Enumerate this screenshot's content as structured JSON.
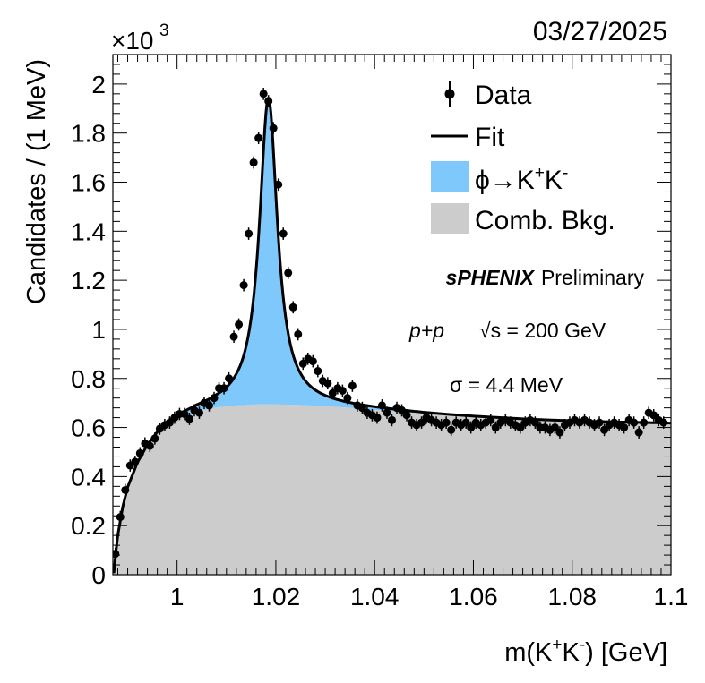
{
  "chart_data": {
    "type": "scatter",
    "date_label": "03/27/2025",
    "multiplier_label": "×10",
    "multiplier_exponent": "3",
    "xlabel_main": "m(K",
    "xlabel_sup1": "+",
    "xlabel_mid": "K",
    "xlabel_sup2": "-",
    "xlabel_end": ") [GeV]",
    "ylabel": "Candidates / (1 MeV)",
    "xlim": [
      0.987,
      1.1
    ],
    "ylim": [
      0,
      2.12
    ],
    "x_ticks": [
      {
        "value": 1.0,
        "label": "1"
      },
      {
        "value": 1.02,
        "label": "1.02"
      },
      {
        "value": 1.04,
        "label": "1.04"
      },
      {
        "value": 1.06,
        "label": "1.06"
      },
      {
        "value": 1.08,
        "label": "1.08"
      },
      {
        "value": 1.1,
        "label": "1.1"
      }
    ],
    "y_ticks": [
      {
        "value": 0,
        "label": "0"
      },
      {
        "value": 0.2,
        "label": "0.2"
      },
      {
        "value": 0.4,
        "label": "0.4"
      },
      {
        "value": 0.6,
        "label": "0.6"
      },
      {
        "value": 0.8,
        "label": "0.8"
      },
      {
        "value": 1.0,
        "label": "1"
      },
      {
        "value": 1.2,
        "label": "1.2"
      },
      {
        "value": 1.4,
        "label": "1.4"
      },
      {
        "value": 1.6,
        "label": "1.6"
      },
      {
        "value": 1.8,
        "label": "1.8"
      },
      {
        "value": 2.0,
        "label": "2"
      }
    ],
    "legend": {
      "position": "top-right",
      "data_label": "Data",
      "fit_label": "Fit",
      "signal_label_main": "ϕ→K",
      "signal_sup1": "+",
      "signal_mid": "K",
      "signal_sup2": "-",
      "background_label": "Comb. Bkg."
    },
    "annotations": {
      "experiment": "sPHENIX",
      "status": "Preliminary",
      "system": "p+p",
      "energy": "√s = 200 GeV",
      "resolution": "σ = 4.4 MeV"
    },
    "colors": {
      "signal": "#7ec8fb",
      "background": "#cccccc",
      "fit": "#000000",
      "data": "#000000"
    },
    "data_points": [
      [
        0.9875,
        0.085
      ],
      [
        0.9885,
        0.235
      ],
      [
        0.9895,
        0.345
      ],
      [
        0.9905,
        0.445
      ],
      [
        0.9915,
        0.46
      ],
      [
        0.9925,
        0.495
      ],
      [
        0.9935,
        0.535
      ],
      [
        0.9945,
        0.525
      ],
      [
        0.9955,
        0.555
      ],
      [
        0.9965,
        0.595
      ],
      [
        0.9975,
        0.61
      ],
      [
        0.9985,
        0.62
      ],
      [
        0.9995,
        0.64
      ],
      [
        1.0005,
        0.655
      ],
      [
        1.0015,
        0.655
      ],
      [
        1.0025,
        0.635
      ],
      [
        1.0035,
        0.67
      ],
      [
        1.0045,
        0.66
      ],
      [
        1.0055,
        0.7
      ],
      [
        1.0065,
        0.69
      ],
      [
        1.0075,
        0.72
      ],
      [
        1.0085,
        0.76
      ],
      [
        1.0095,
        0.76
      ],
      [
        1.0105,
        0.8
      ],
      [
        1.0115,
        0.97
      ],
      [
        1.0125,
        1.02
      ],
      [
        1.0135,
        1.18
      ],
      [
        1.0145,
        1.39
      ],
      [
        1.0155,
        1.68
      ],
      [
        1.0165,
        1.78
      ],
      [
        1.0175,
        1.96
      ],
      [
        1.0185,
        1.93
      ],
      [
        1.0195,
        1.82
      ],
      [
        1.0205,
        1.59
      ],
      [
        1.0215,
        1.39
      ],
      [
        1.0225,
        1.23
      ],
      [
        1.0235,
        1.09
      ],
      [
        1.0245,
        0.98
      ],
      [
        1.0255,
        0.86
      ],
      [
        1.0265,
        0.88
      ],
      [
        1.0275,
        0.87
      ],
      [
        1.0285,
        0.83
      ],
      [
        1.0295,
        0.79
      ],
      [
        1.0305,
        0.78
      ],
      [
        1.0315,
        0.74
      ],
      [
        1.0325,
        0.76
      ],
      [
        1.0335,
        0.75
      ],
      [
        1.0345,
        0.72
      ],
      [
        1.0355,
        0.77
      ],
      [
        1.0365,
        0.69
      ],
      [
        1.0375,
        0.68
      ],
      [
        1.0385,
        0.66
      ],
      [
        1.0395,
        0.65
      ],
      [
        1.0405,
        0.64
      ],
      [
        1.0415,
        0.69
      ],
      [
        1.0425,
        0.66
      ],
      [
        1.0435,
        0.63
      ],
      [
        1.0445,
        0.68
      ],
      [
        1.0455,
        0.67
      ],
      [
        1.0465,
        0.65
      ],
      [
        1.0475,
        0.62
      ],
      [
        1.0485,
        0.61
      ],
      [
        1.0495,
        0.62
      ],
      [
        1.0505,
        0.64
      ],
      [
        1.0515,
        0.63
      ],
      [
        1.0525,
        0.62
      ],
      [
        1.0535,
        0.61
      ],
      [
        1.0545,
        0.62
      ],
      [
        1.0555,
        0.59
      ],
      [
        1.0565,
        0.62
      ],
      [
        1.0575,
        0.61
      ],
      [
        1.0585,
        0.62
      ],
      [
        1.0595,
        0.6
      ],
      [
        1.0605,
        0.62
      ],
      [
        1.0615,
        0.61
      ],
      [
        1.0625,
        0.62
      ],
      [
        1.0635,
        0.63
      ],
      [
        1.0645,
        0.6
      ],
      [
        1.0655,
        0.62
      ],
      [
        1.0665,
        0.63
      ],
      [
        1.0675,
        0.62
      ],
      [
        1.0685,
        0.61
      ],
      [
        1.0695,
        0.6
      ],
      [
        1.0705,
        0.62
      ],
      [
        1.0715,
        0.63
      ],
      [
        1.0725,
        0.62
      ],
      [
        1.0735,
        0.6
      ],
      [
        1.0745,
        0.6
      ],
      [
        1.0755,
        0.59
      ],
      [
        1.0765,
        0.6
      ],
      [
        1.0775,
        0.58
      ],
      [
        1.0785,
        0.61
      ],
      [
        1.0795,
        0.62
      ],
      [
        1.0805,
        0.63
      ],
      [
        1.0815,
        0.62
      ],
      [
        1.0825,
        0.63
      ],
      [
        1.0835,
        0.62
      ],
      [
        1.0845,
        0.61
      ],
      [
        1.0855,
        0.62
      ],
      [
        1.0865,
        0.59
      ],
      [
        1.0875,
        0.61
      ],
      [
        1.0885,
        0.62
      ],
      [
        1.0895,
        0.61
      ],
      [
        1.0905,
        0.6
      ],
      [
        1.0915,
        0.63
      ],
      [
        1.0925,
        0.62
      ],
      [
        1.0935,
        0.58
      ],
      [
        1.0945,
        0.62
      ],
      [
        1.0955,
        0.66
      ],
      [
        1.0965,
        0.65
      ],
      [
        1.0975,
        0.63
      ],
      [
        1.0985,
        0.62
      ]
    ],
    "data_errors": 0.025,
    "background_curve": [
      [
        0.9872,
        0.0
      ],
      [
        0.9876,
        0.085
      ],
      [
        0.988,
        0.155
      ],
      [
        0.989,
        0.27
      ],
      [
        0.99,
        0.35
      ],
      [
        0.992,
        0.45
      ],
      [
        0.994,
        0.52
      ],
      [
        0.996,
        0.57
      ],
      [
        0.998,
        0.61
      ],
      [
        1.0,
        0.635
      ],
      [
        1.004,
        0.665
      ],
      [
        1.008,
        0.682
      ],
      [
        1.012,
        0.69
      ],
      [
        1.016,
        0.694
      ],
      [
        1.02,
        0.694
      ],
      [
        1.025,
        0.692
      ],
      [
        1.03,
        0.687
      ],
      [
        1.035,
        0.68
      ],
      [
        1.04,
        0.672
      ],
      [
        1.045,
        0.664
      ],
      [
        1.05,
        0.656
      ],
      [
        1.055,
        0.649
      ],
      [
        1.06,
        0.643
      ],
      [
        1.065,
        0.638
      ],
      [
        1.07,
        0.633
      ],
      [
        1.075,
        0.629
      ],
      [
        1.08,
        0.626
      ],
      [
        1.085,
        0.623
      ],
      [
        1.09,
        0.621
      ],
      [
        1.095,
        0.619
      ],
      [
        1.1,
        0.617
      ]
    ],
    "signal_peak": {
      "mass": 1.0185,
      "gamma": 0.0044,
      "amplitude": 1.25
    }
  }
}
